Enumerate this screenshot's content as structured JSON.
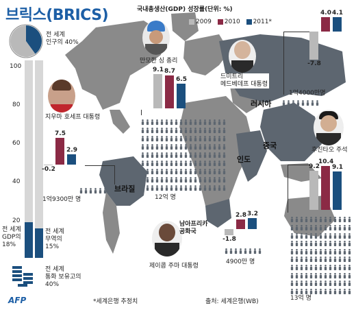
{
  "title": "브릭스(BRICS)",
  "legend": {
    "title": "국내총생산(GDP) 성장률(단위: %)",
    "series": [
      {
        "name": "2009",
        "color": "#b9b9b9"
      },
      {
        "name": "2010",
        "color": "#8b2a45"
      },
      {
        "name": "2011*",
        "color": "#1b4f7e"
      }
    ]
  },
  "population_share": {
    "text": "전 세계\n인구의 40%",
    "fraction": 0.4
  },
  "left_scale": {
    "ticks": [
      "100",
      "80",
      "60",
      "40",
      "20"
    ]
  },
  "shares": {
    "gdp": {
      "text": "전 세계\nGDP의\n18%",
      "value": 18
    },
    "trade": {
      "text": "전 세계\n무역의\n15%",
      "value": 15
    },
    "reserves": {
      "text": "전 세계\n통화 보유고의\n40%",
      "value": 40
    }
  },
  "countries": {
    "brazil": {
      "name": "브라질",
      "leader": "지우마 호세프 대통령",
      "population": "1억9300만 명",
      "gdp": [
        "-0.2",
        "7.5",
        "2.9"
      ]
    },
    "india": {
      "name": "인도",
      "leader": "만모한 싱 총리",
      "population": "12억 명",
      "gdp": [
        "9.1",
        "8.7",
        "6.5"
      ]
    },
    "russia": {
      "name": "러시아",
      "leader": "드미트리\n메드베데프 대통령",
      "population": "1억4000만명",
      "gdp": [
        "-7.8",
        "4.0",
        "4.1"
      ]
    },
    "china": {
      "name": "중국",
      "leader": "후진타오 주석",
      "population": "13억 명",
      "gdp": [
        "9.2",
        "10.4",
        "9.1"
      ]
    },
    "south_africa": {
      "name": "남아프리카\n공화국",
      "leader": "제이콥 주마 대통령",
      "population": "4900만 명",
      "gdp": [
        "-1.8",
        "2.8",
        "3.2"
      ]
    }
  },
  "footer": {
    "logo": "AFP",
    "note": "*세계은행 추정치",
    "source": "출처: 세계은행(WB)"
  },
  "colors": {
    "map": "#7d7d7d",
    "highlight": "#5d6670",
    "accent": "#1d5fa6"
  }
}
